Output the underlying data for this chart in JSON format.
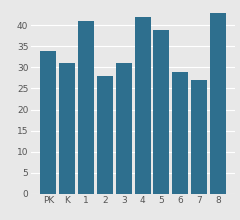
{
  "categories": [
    "PK",
    "K",
    "1",
    "2",
    "3",
    "4",
    "5",
    "6",
    "7",
    "8"
  ],
  "values": [
    34,
    31,
    41,
    28,
    31,
    42,
    39,
    29,
    27,
    43
  ],
  "bar_color": "#2e6f8e",
  "ylim": [
    0,
    45
  ],
  "yticks": [
    0,
    5,
    10,
    15,
    20,
    25,
    30,
    35,
    40
  ],
  "background_color": "#e8e8e8",
  "bar_width": 0.85,
  "tick_fontsize": 6.5
}
